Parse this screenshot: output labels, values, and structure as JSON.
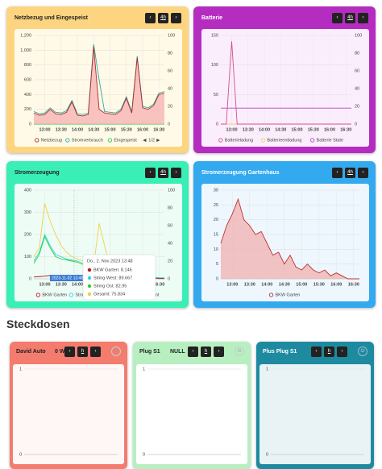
{
  "cards": [
    {
      "title": "Netzbezug und Eingespeist",
      "range": "4h",
      "chart": {
        "type": "line",
        "categories": [
          null,
          null,
          "13:00",
          null,
          null,
          "13:30",
          null,
          null,
          "14:00",
          null,
          null,
          "14:30",
          null,
          null,
          "15:00",
          null,
          null,
          "15:30",
          null,
          null,
          "16:00",
          null,
          null,
          "16:30",
          null
        ],
        "ylim": [
          0,
          1200
        ],
        "yticks": [
          0,
          200,
          400,
          600,
          800,
          {
            "value": 1000,
            "label": "1,000"
          },
          {
            "value": 1200,
            "label": "1,200"
          }
        ],
        "y2lim": [
          0,
          100
        ],
        "y2ticks": [
          0,
          20,
          40,
          60,
          80,
          100
        ],
        "grid": true,
        "legend_page": "1/2",
        "series": [
          {
            "name": "Netzbezug",
            "color": "#b22a2a",
            "fill": "#f6b4b4",
            "values": [
              150,
              120,
              130,
              200,
              140,
              130,
              160,
              300,
              120,
              110,
              130,
              1050,
              200,
              150,
              140,
              130,
              180,
              350,
              150,
              900,
              220,
              200,
              250,
              400,
              420
            ]
          },
          {
            "name": "Stromverbrauch",
            "color": "#2aa8a0",
            "values": [
              170,
              140,
              150,
              220,
              160,
              150,
              180,
              320,
              140,
              130,
              150,
              1080,
              600,
              170,
              160,
              150,
              200,
              370,
              170,
              920,
              240,
              220,
              270,
              420,
              440
            ]
          },
          {
            "name": "Eingespeist",
            "color": "#2ecc40",
            "values": [
              0,
              0,
              0,
              0,
              0,
              0,
              0,
              0,
              0,
              0,
              0,
              0,
              0,
              0,
              0,
              0,
              0,
              0,
              0,
              0,
              0,
              0,
              0,
              0,
              0
            ]
          }
        ]
      }
    },
    {
      "title": "Batterie",
      "range": "4h",
      "chart": {
        "type": "line",
        "categories": [
          null,
          null,
          "13:00",
          null,
          null,
          "13:30",
          null,
          null,
          "14:00",
          null,
          null,
          "14:30",
          null,
          null,
          "15:00",
          null,
          null,
          "15:30",
          null,
          null,
          "16:00",
          null,
          null,
          "16:30",
          null
        ],
        "ylim": [
          0,
          150
        ],
        "yticks": [
          0,
          50,
          100,
          150
        ],
        "y2lim": [
          0,
          100
        ],
        "y2ticks": [
          0,
          20,
          40,
          60,
          80,
          100
        ],
        "grid": true,
        "series": [
          {
            "name": "Batterieladung",
            "color": "#d0508a",
            "values": [
              0,
              0,
              140,
              0,
              0,
              0,
              0,
              0,
              0,
              0,
              0,
              0,
              0,
              0,
              0,
              0,
              0,
              0,
              0,
              0,
              0,
              0,
              0,
              0,
              0
            ]
          },
          {
            "name": "Batterieentladung",
            "color": "#f0d060",
            "values": [
              0,
              0,
              0,
              0,
              0,
              0,
              0,
              0,
              0,
              0,
              0,
              0,
              0,
              0,
              0,
              0,
              0,
              0,
              0,
              0,
              0,
              0,
              0,
              0,
              0
            ]
          },
          {
            "name": "Batterie State",
            "color": "#c040c8",
            "axis": "y2",
            "values": [
              18,
              18,
              18,
              18,
              18,
              18,
              18,
              18,
              18,
              18,
              18,
              18,
              18,
              18,
              18,
              18,
              18,
              18,
              18,
              18,
              18,
              18,
              18,
              18,
              18
            ]
          }
        ]
      }
    },
    {
      "title": "Stromerzeugung",
      "range": "4h",
      "chart": {
        "type": "line",
        "categories": [
          null,
          null,
          "13:00",
          null,
          null,
          "13:30",
          null,
          null,
          "14:00",
          null,
          null,
          "14:30",
          null,
          null,
          "15:00",
          null,
          null,
          "15:30",
          null,
          null,
          "16:00",
          null,
          null,
          "16:30",
          null
        ],
        "ylim": [
          0,
          400
        ],
        "yticks": [
          0,
          100,
          200,
          300,
          400
        ],
        "y2lim": [
          0,
          100
        ],
        "y2ticks": [
          0,
          20,
          40,
          60,
          80,
          100
        ],
        "grid": true,
        "series": [
          {
            "name": "BKW Garten",
            "color": "#b01c1c",
            "values": [
              8,
              10,
              12,
              15,
              12,
              10,
              9,
              8,
              8,
              7,
              6,
              6,
              8,
              7,
              6,
              5,
              5,
              4,
              4,
              3,
              3,
              2,
              2,
              1,
              1
            ]
          },
          {
            "name": "String West",
            "color": "#2ad4e0",
            "values": [
              80,
              120,
              200,
              150,
              110,
              100,
              90,
              85,
              80,
              70,
              60,
              55,
              80,
              60,
              50,
              35,
              28,
              22,
              18,
              14,
              10,
              9,
              7,
              5,
              4
            ]
          },
          {
            "name": "String Ost",
            "color": "#33cc33",
            "values": [
              70,
              110,
              190,
              140,
              100,
              90,
              85,
              80,
              75,
              65,
              55,
              50,
              70,
              55,
              45,
              30,
              25,
              20,
              16,
              12,
              9,
              8,
              6,
              4,
              3
            ]
          },
          {
            "name": "Gesamt",
            "color": "#f0d040",
            "values": [
              100,
              140,
              340,
              260,
              200,
              150,
              120,
              100,
              90,
              80,
              70,
              60,
              250,
              150,
              60,
              40,
              30,
              25,
              20,
              15,
              10,
              10,
              8,
              5,
              5
            ]
          }
        ],
        "tooltip": {
          "title": "Do., 2. Nov 2023 13:48",
          "x_label": "2023-11-02 13:48",
          "items": [
            {
              "text": "BKW Garten: 8.146",
              "color": "#b01c1c"
            },
            {
              "text": "String West: 89.667",
              "color": "#2ad4e0"
            },
            {
              "text": "String Ost: 82.95",
              "color": "#33cc33"
            },
            {
              "text": "Gesamt: 75.834",
              "color": "#f0d040"
            }
          ]
        }
      }
    },
    {
      "title": "Stromerzeugung Gartenhaus",
      "range": "4h",
      "chart": {
        "type": "line",
        "categories": [
          null,
          null,
          "13:00",
          null,
          null,
          "13:30",
          null,
          null,
          "14:00",
          null,
          null,
          "14:30",
          null,
          null,
          "15:00",
          null,
          null,
          "15:30",
          null,
          null,
          "16:00",
          null,
          null,
          "16:30",
          null
        ],
        "ylim": [
          0,
          30
        ],
        "yticks": [
          0,
          5,
          10,
          15,
          20,
          25,
          30
        ],
        "grid": true,
        "series": [
          {
            "name": "BKW Garten",
            "color": "#c03030",
            "fill": "#f0b4b4",
            "values": [
              12,
              18,
              22,
              27,
              20,
              18,
              15,
              16,
              12,
              8,
              9,
              5,
              8,
              4,
              3,
              5,
              3,
              2,
              3,
              1,
              2,
              1,
              0,
              0,
              0
            ]
          }
        ]
      }
    }
  ],
  "section_title": "Steckdosen",
  "plugs": [
    {
      "title": "David Auto",
      "value": "0 W",
      "range": "h",
      "chart": {
        "type": "line",
        "ylim": [
          0,
          1
        ],
        "yticks": [
          0,
          1
        ],
        "grid": true
      }
    },
    {
      "title": "Plug S1",
      "value": "NULL",
      "range": "h",
      "chart": {
        "type": "line",
        "ylim": [
          0,
          1
        ],
        "yticks": [
          0,
          1
        ],
        "grid": true
      }
    },
    {
      "title": "Plus Plug S1",
      "range": "h",
      "chart": {
        "type": "line",
        "ylim": [
          0,
          1
        ],
        "yticks": [
          0,
          1
        ],
        "grid": true
      }
    }
  ]
}
